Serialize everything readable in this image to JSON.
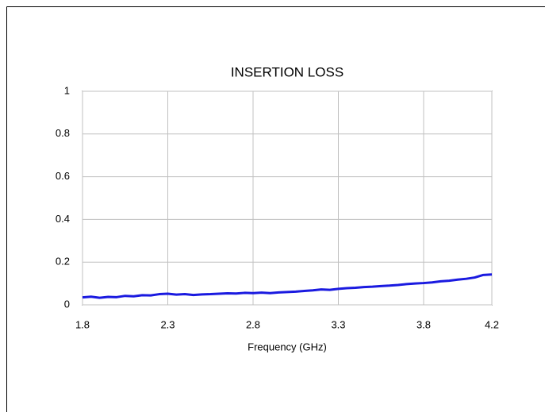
{
  "chart_data": {
    "type": "line",
    "title": "INSERTION LOSS",
    "x_label": "Frequency (GHz)",
    "x": [
      1.8,
      1.85,
      1.9,
      1.95,
      2.0,
      2.05,
      2.1,
      2.15,
      2.2,
      2.25,
      2.3,
      2.35,
      2.4,
      2.45,
      2.5,
      2.55,
      2.6,
      2.65,
      2.7,
      2.75,
      2.8,
      2.85,
      2.9,
      2.95,
      3.0,
      3.05,
      3.1,
      3.15,
      3.2,
      3.25,
      3.3,
      3.35,
      3.4,
      3.45,
      3.5,
      3.55,
      3.6,
      3.65,
      3.7,
      3.75,
      3.8,
      3.85,
      3.9,
      3.95,
      4.0,
      4.05,
      4.1,
      4.15,
      4.2
    ],
    "values": [
      0.035,
      0.038,
      0.033,
      0.037,
      0.036,
      0.042,
      0.04,
      0.045,
      0.044,
      0.05,
      0.052,
      0.048,
      0.05,
      0.046,
      0.049,
      0.05,
      0.052,
      0.054,
      0.053,
      0.056,
      0.055,
      0.057,
      0.055,
      0.058,
      0.06,
      0.062,
      0.065,
      0.068,
      0.072,
      0.07,
      0.075,
      0.078,
      0.08,
      0.083,
      0.085,
      0.088,
      0.09,
      0.093,
      0.097,
      0.1,
      0.102,
      0.105,
      0.11,
      0.113,
      0.118,
      0.122,
      0.128,
      0.14,
      0.142
    ],
    "color": "#1a1ae0",
    "xlim": [
      1.8,
      4.2
    ],
    "xticks": [
      1.8,
      2.3,
      2.8,
      3.3,
      3.8,
      4.2
    ],
    "ylim": [
      0,
      1
    ],
    "yticks": [
      0,
      0.2,
      0.4,
      0.6,
      0.8,
      1
    ],
    "grid": true
  }
}
